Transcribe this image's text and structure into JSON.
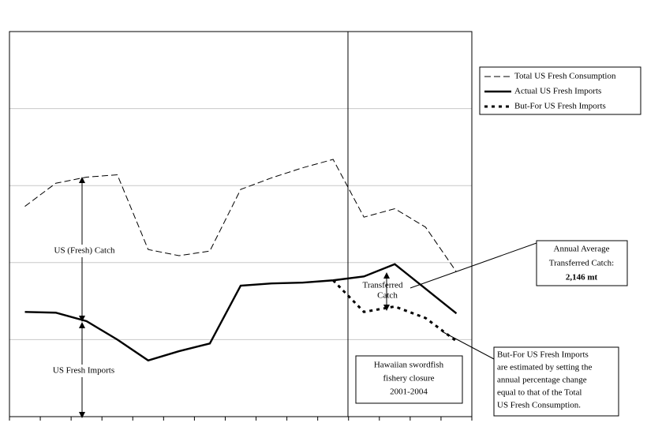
{
  "chart_data": {
    "type": "line",
    "categories": [
      null,
      null,
      null,
      null,
      null,
      null,
      null,
      null,
      null,
      null,
      null,
      null,
      null,
      null,
      null
    ],
    "series": [
      {
        "name": "Total US Fresh Consumption",
        "color": "#000000",
        "dash": "dashed",
        "values": [
          2.73,
          3.03,
          3.11,
          3.14,
          2.17,
          2.09,
          2.15,
          2.95,
          3.1,
          3.23,
          3.34,
          2.59,
          2.7,
          2.46,
          1.88
        ]
      },
      {
        "name": "Actual US Fresh Imports",
        "color": "#000000",
        "dash": "solid",
        "values": [
          1.36,
          1.35,
          1.24,
          1.0,
          0.73,
          0.85,
          0.95,
          1.7,
          1.73,
          1.74,
          1.77,
          1.82,
          1.98,
          1.66,
          1.34
        ]
      },
      {
        "name": "But-For US Fresh Imports",
        "color": "#000000",
        "dash": "dotted",
        "values": [
          null,
          null,
          null,
          null,
          null,
          null,
          null,
          null,
          null,
          null,
          1.77,
          1.36,
          1.43,
          1.28,
          0.98
        ]
      }
    ],
    "ylim": [
      0,
      5
    ],
    "yticks": [
      0,
      1,
      2,
      3,
      4,
      5
    ],
    "grid": true,
    "annotations": {
      "catch_label": "US (Fresh) Catch",
      "imports_label": "US Fresh Imports",
      "transferred_label": [
        "Transferred",
        "Catch"
      ],
      "average_box": [
        "Annual Average",
        "Transferred Catch:",
        "2,146 mt"
      ],
      "closure_box": [
        "Hawaiian swordfish",
        "fishery closure",
        "2001-2004"
      ],
      "note_box": [
        "But-For US Fresh Imports",
        "are estimated by setting the",
        "annual percentage change",
        "equal to that of the Total",
        "US Fresh Consumption."
      ]
    }
  }
}
